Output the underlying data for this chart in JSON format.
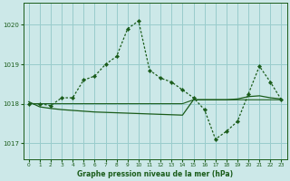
{
  "title": "Graphe pression niveau de la mer (hPa)",
  "background_color": "#cce8e8",
  "grid_color": "#99cccc",
  "line_color": "#1a5c1a",
  "xlim": [
    -0.5,
    23.5
  ],
  "ylim": [
    1016.6,
    1020.55
  ],
  "yticks": [
    1017,
    1018,
    1019,
    1020
  ],
  "xticks": [
    0,
    1,
    2,
    3,
    4,
    5,
    6,
    7,
    8,
    9,
    10,
    11,
    12,
    13,
    14,
    15,
    16,
    17,
    18,
    19,
    20,
    21,
    22,
    23
  ],
  "series1_x": [
    0,
    1,
    2,
    3,
    4,
    5,
    6,
    7,
    8,
    9,
    10,
    11,
    12,
    13,
    14,
    15,
    16,
    17,
    18,
    19,
    20,
    21,
    22,
    23
  ],
  "series1_y": [
    1018.0,
    1018.0,
    1017.95,
    1018.15,
    1018.15,
    1018.6,
    1018.7,
    1019.0,
    1019.2,
    1019.9,
    1020.1,
    1018.85,
    1018.65,
    1018.55,
    1018.35,
    1018.15,
    1017.85,
    1017.1,
    1017.3,
    1017.55,
    1018.25,
    1018.95,
    1018.55,
    1018.1
  ],
  "series2_x": [
    0,
    1,
    2,
    3,
    4,
    5,
    6,
    7,
    8,
    9,
    10,
    11,
    12,
    13,
    14,
    15,
    16,
    17,
    18,
    19,
    20,
    21,
    22,
    23
  ],
  "series2_y": [
    1018.05,
    1017.92,
    1017.88,
    1017.85,
    1017.83,
    1017.81,
    1017.79,
    1017.78,
    1017.77,
    1017.76,
    1017.75,
    1017.74,
    1017.73,
    1017.72,
    1017.71,
    1018.1,
    1018.1,
    1018.1,
    1018.1,
    1018.12,
    1018.18,
    1018.2,
    1018.15,
    1018.12
  ],
  "series3_x": [
    0,
    1,
    2,
    3,
    4,
    5,
    6,
    7,
    8,
    9,
    10,
    11,
    12,
    13,
    14,
    15,
    16,
    17,
    18,
    19,
    20,
    21,
    22,
    23
  ],
  "series3_y": [
    1018.0,
    1018.0,
    1018.0,
    1018.0,
    1018.0,
    1018.0,
    1018.0,
    1018.0,
    1018.0,
    1018.0,
    1018.0,
    1018.0,
    1018.0,
    1018.0,
    1018.0,
    1018.1,
    1018.1,
    1018.1,
    1018.1,
    1018.1,
    1018.1,
    1018.1,
    1018.1,
    1018.1
  ]
}
